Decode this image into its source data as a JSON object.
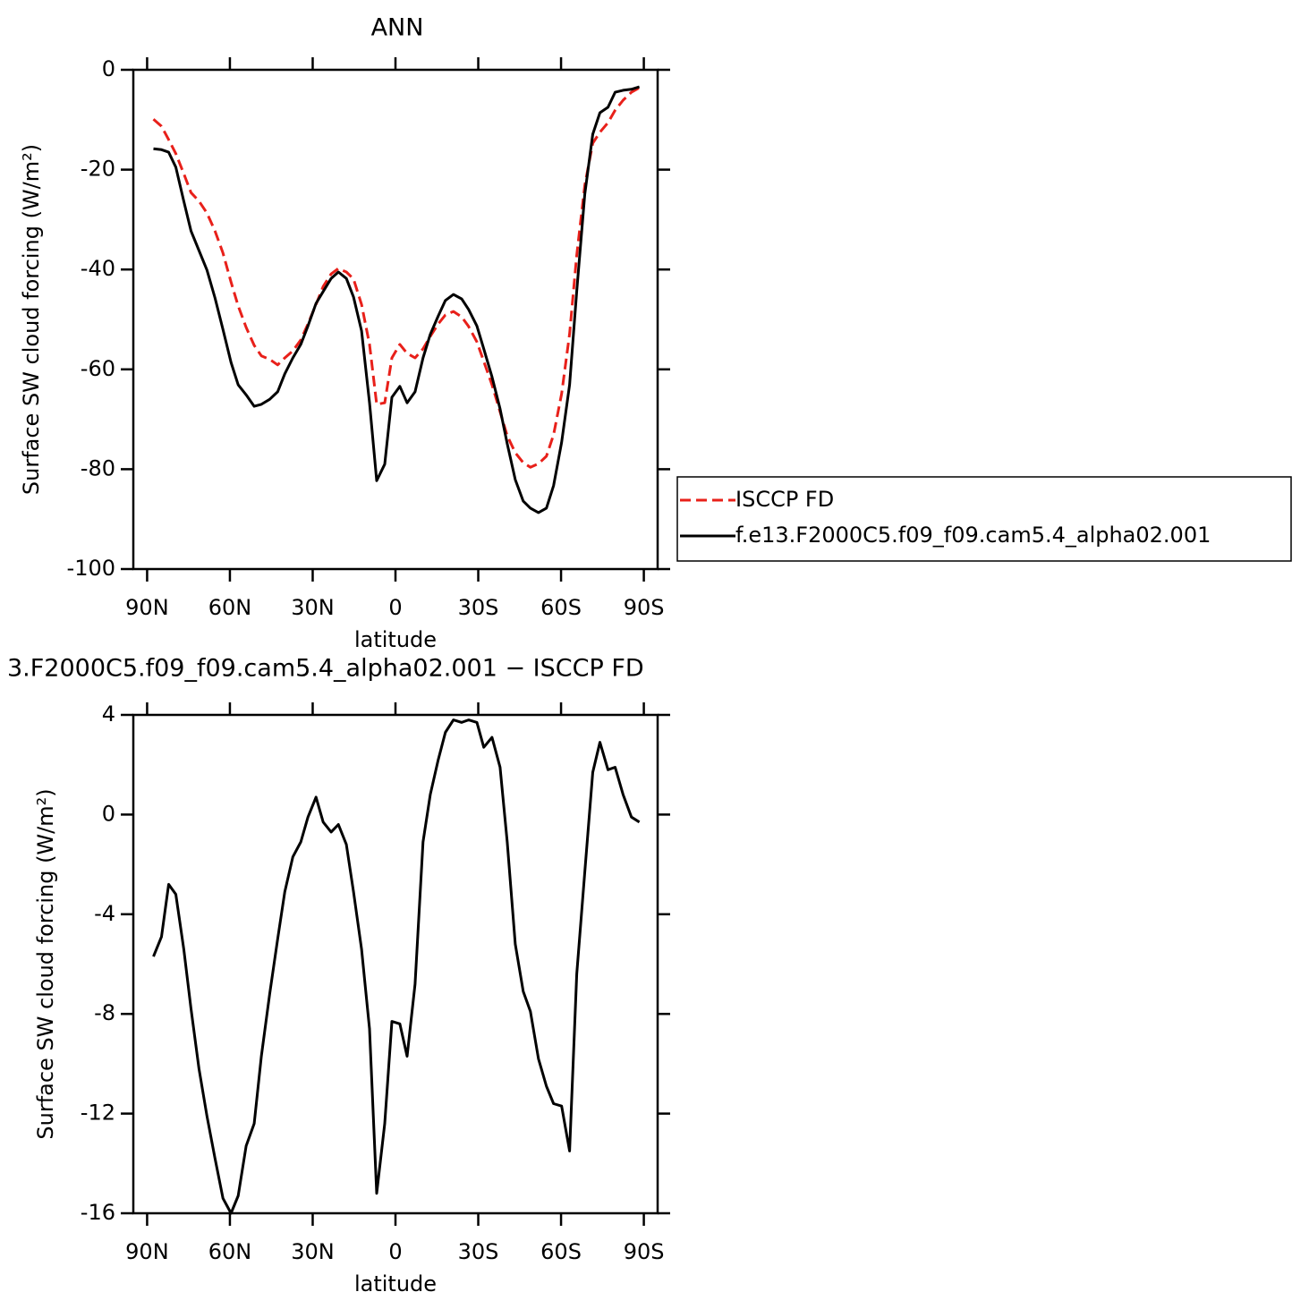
{
  "chart_data": [
    {
      "type": "line",
      "title": "ANN",
      "xlabel": "latitude",
      "ylabel": "Surface SW cloud forcing (W/m²)",
      "x": [
        87.7,
        84.8,
        82.2,
        79.6,
        76.7,
        74.1,
        71.2,
        68.3,
        65.4,
        62.5,
        59.6,
        57.0,
        54.1,
        51.2,
        48.6,
        45.6,
        42.7,
        40.1,
        37.2,
        34.3,
        31.7,
        28.8,
        26.2,
        23.3,
        20.7,
        17.8,
        15.2,
        12.3,
        9.4,
        6.8,
        3.9,
        1.3,
        -1.6,
        -4.2,
        -7.1,
        -10.0,
        -12.6,
        -15.5,
        -18.1,
        -21.0,
        -24.0,
        -26.5,
        -29.5,
        -32.0,
        -35.0,
        -37.9,
        -40.5,
        -43.4,
        -46.3,
        -48.9,
        -51.8,
        -54.7,
        -57.3,
        -60.2,
        -63.1,
        -65.7,
        -68.6,
        -71.5,
        -74.1,
        -77.0,
        -79.6,
        -82.5,
        -85.5,
        -88.4
      ],
      "series": [
        {
          "name": "ISCCP FD",
          "color": "#e8201a",
          "dashed": true,
          "values": [
            -9.9,
            -11.3,
            -14,
            -16.8,
            -20.8,
            -24.6,
            -26.3,
            -28.7,
            -32.3,
            -36.7,
            -42.5,
            -47.3,
            -51.6,
            -55.2,
            -57.3,
            -58,
            -59.1,
            -57.7,
            -56.3,
            -54.1,
            -50.9,
            -47,
            -43.4,
            -40.9,
            -39.8,
            -40.5,
            -41.9,
            -47,
            -55,
            -67,
            -66.7,
            -57.7,
            -55,
            -56.8,
            -57.7,
            -55.9,
            -53.4,
            -50.9,
            -49.1,
            -48.4,
            -49.5,
            -51.4,
            -54.5,
            -58.4,
            -63.1,
            -68.5,
            -73.3,
            -76.7,
            -78.7,
            -79.6,
            -78.9,
            -77.4,
            -73.1,
            -64.9,
            -52.9,
            -37.1,
            -23.1,
            -14.7,
            -12.5,
            -10.6,
            -8.1,
            -6.1,
            -4.5,
            -3.6
          ]
        },
        {
          "name": "f.e13.F2000C5.f09_f09.cam5.4_alpha02.001",
          "color": "#000000",
          "dashed": false,
          "values": [
            -15.8,
            -16,
            -16.5,
            -19.5,
            -26.3,
            -32.3,
            -36.2,
            -40.1,
            -45.7,
            -52,
            -58.6,
            -63.1,
            -65.1,
            -67.4,
            -67,
            -66,
            -64.5,
            -60.9,
            -57.7,
            -55,
            -51.3,
            -46.8,
            -44.4,
            -41.8,
            -40.5,
            -41.8,
            -45.5,
            -52.3,
            -66.7,
            -82.3,
            -79,
            -65.6,
            -63.4,
            -66.7,
            -64.5,
            -57.7,
            -53,
            -49.3,
            -46.2,
            -45,
            -45.9,
            -48,
            -51.3,
            -55.9,
            -61.5,
            -67.9,
            -74.9,
            -82.1,
            -86.4,
            -87.8,
            -88.7,
            -87.8,
            -83.3,
            -74.6,
            -63.1,
            -44.3,
            -24.9,
            -12.9,
            -8.6,
            -7.5,
            -4.5,
            -4.1,
            -3.9,
            -3.4
          ]
        }
      ],
      "xlim": [
        95,
        -95
      ],
      "xticks": [
        {
          "value": 90,
          "label": "90N"
        },
        {
          "value": 60,
          "label": "60N"
        },
        {
          "value": 30,
          "label": "30N"
        },
        0,
        {
          "value": -30,
          "label": "30S"
        },
        {
          "value": -60,
          "label": "60S"
        },
        {
          "value": -90,
          "label": "90S"
        }
      ],
      "ylim": [
        -100,
        0
      ],
      "yticks": [
        -100,
        -80,
        -60,
        -40,
        -20,
        0
      ],
      "legend": "right"
    },
    {
      "type": "line",
      "title": "3.F2000C5.f09_f09.cam5.4_alpha02.001 − ISCCP FD",
      "xlabel": "latitude",
      "ylabel": "Surface SW cloud forcing (W/m²)",
      "x": [
        87.7,
        84.8,
        82.2,
        79.6,
        76.7,
        74.1,
        71.2,
        68.3,
        65.4,
        62.5,
        59.6,
        57.0,
        54.1,
        51.2,
        48.6,
        45.6,
        42.7,
        40.1,
        37.2,
        34.3,
        31.7,
        28.8,
        26.2,
        23.3,
        20.7,
        17.8,
        15.2,
        12.3,
        9.4,
        6.8,
        3.9,
        1.3,
        -1.6,
        -4.2,
        -7.1,
        -10.0,
        -12.6,
        -15.5,
        -18.1,
        -21.0,
        -24.0,
        -26.5,
        -29.5,
        -32.0,
        -35.0,
        -37.9,
        -40.5,
        -43.4,
        -46.3,
        -48.9,
        -51.8,
        -54.7,
        -57.3,
        -60.2,
        -63.1,
        -65.7,
        -68.6,
        -71.5,
        -74.1,
        -77.0,
        -79.6,
        -82.5,
        -85.5,
        -88.4
      ],
      "series": [
        {
          "color": "#000000",
          "dashed": false,
          "values": [
            -5.7,
            -4.9,
            -2.8,
            -3.2,
            -5.4,
            -7.8,
            -10.2,
            -12.1,
            -13.8,
            -15.4,
            -16,
            -15.3,
            -13.3,
            -12.4,
            -9.7,
            -7.2,
            -5,
            -3.1,
            -1.7,
            -1.1,
            -0.1,
            0.7,
            -0.3,
            -0.7,
            -0.4,
            -1.2,
            -3.1,
            -5.4,
            -8.6,
            -15.2,
            -12.4,
            -8.3,
            -8.4,
            -9.7,
            -6.8,
            -1.1,
            0.8,
            2.2,
            3.3,
            3.8,
            3.7,
            3.8,
            3.7,
            2.7,
            3.1,
            1.9,
            -1.1,
            -5.2,
            -7.1,
            -7.9,
            -9.8,
            -10.9,
            -11.6,
            -11.7,
            -13.5,
            -6.4,
            -2.3,
            1.7,
            2.9,
            1.8,
            1.9,
            0.8,
            -0.1,
            -0.3
          ]
        }
      ],
      "xlim": [
        95,
        -95
      ],
      "xticks": [
        {
          "value": 90,
          "label": "90N"
        },
        {
          "value": 60,
          "label": "60N"
        },
        {
          "value": 30,
          "label": "30N"
        },
        0,
        {
          "value": -30,
          "label": "30S"
        },
        {
          "value": -60,
          "label": "60S"
        },
        {
          "value": -90,
          "label": "90S"
        }
      ],
      "ylim": [
        -16,
        4
      ],
      "yticks": [
        -16,
        -12,
        -8,
        -4,
        0,
        4
      ]
    }
  ]
}
